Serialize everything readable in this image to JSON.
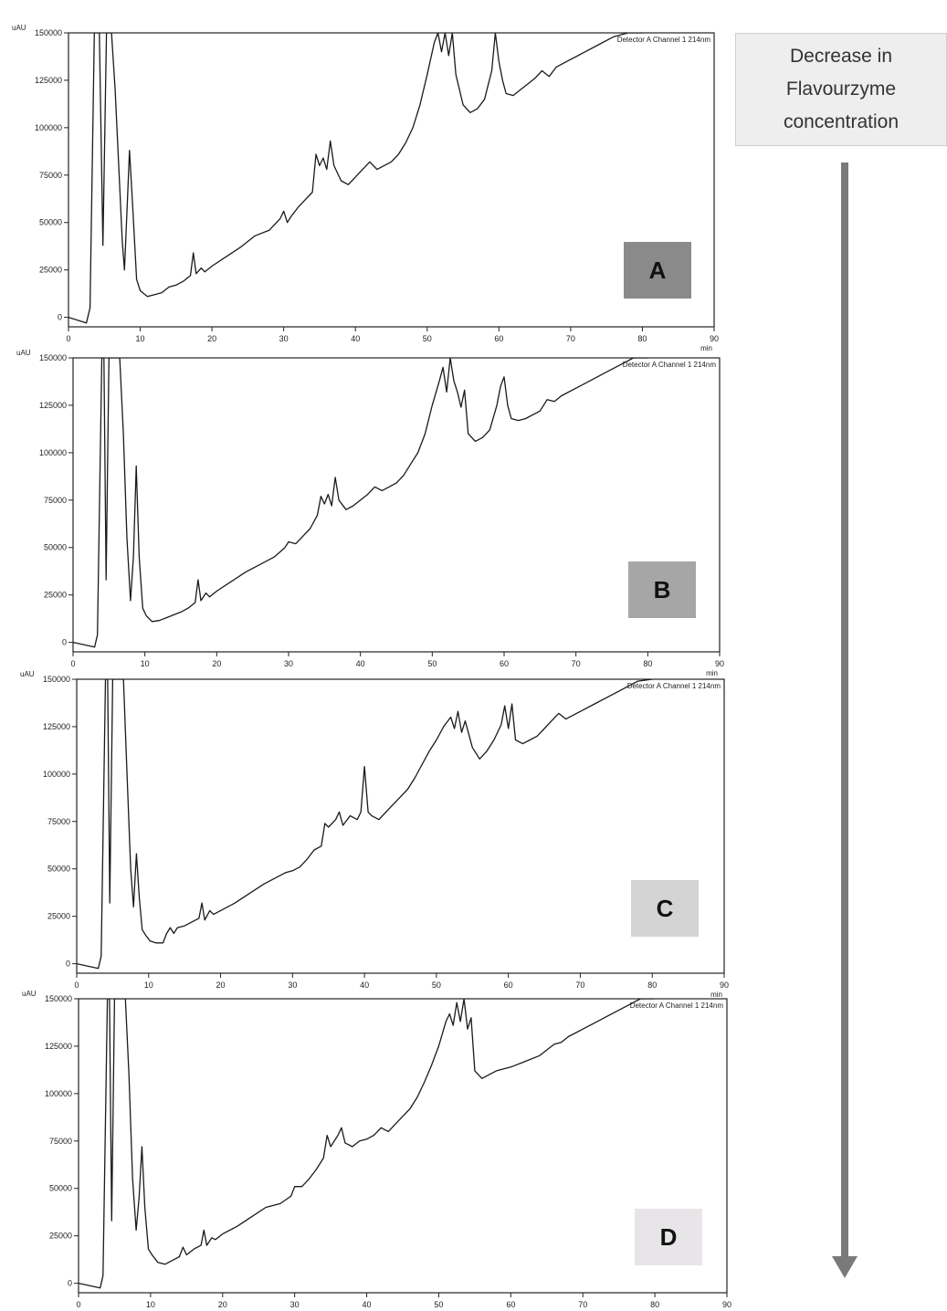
{
  "annotation": {
    "lines": [
      "Decrease in",
      "Flavourzyme",
      "concentration"
    ],
    "arrow_color": "#7a7a7a"
  },
  "chart_data": [
    {
      "type": "line",
      "panel_label": "A",
      "label_color": "#8a8a8a",
      "detector_text": "Detector A Channel 1 214nm",
      "y_unit": "uAU",
      "x_unit": "min",
      "xlim": [
        0,
        90
      ],
      "ylim": [
        -5000,
        150000
      ],
      "x_ticks": [
        0,
        10,
        20,
        30,
        40,
        50,
        60,
        70,
        80,
        90
      ],
      "y_ticks": [
        0,
        25000,
        50000,
        75000,
        100000,
        125000,
        150000
      ],
      "x": [
        0,
        2.5,
        3.0,
        3.6,
        4.0,
        4.3,
        4.8,
        5.3,
        5.7,
        6.0,
        6.5,
        7.0,
        7.5,
        7.8,
        8.2,
        8.5,
        9.0,
        9.5,
        10,
        11,
        12,
        13,
        14,
        15,
        16,
        17,
        17.4,
        17.8,
        18.5,
        19,
        20,
        22,
        24,
        26,
        28,
        29.5,
        30,
        30.5,
        31,
        32,
        33,
        34,
        34.5,
        35,
        35.5,
        36,
        36.5,
        37,
        38,
        39,
        40,
        41,
        42,
        43,
        44,
        45,
        46,
        47,
        48,
        49,
        50,
        51,
        51.5,
        52,
        52.5,
        53,
        53.5,
        54,
        55,
        56,
        57,
        58,
        59,
        59.5,
        60,
        60.5,
        61,
        62,
        63,
        64,
        65,
        66,
        67,
        68,
        70,
        72,
        74,
        76,
        78,
        80
      ],
      "y": [
        0,
        -3000,
        5000,
        150000,
        150000,
        150000,
        38000,
        150000,
        150000,
        150000,
        120000,
        80000,
        40000,
        25000,
        60000,
        88000,
        55000,
        20000,
        14000,
        11000,
        12000,
        13000,
        16000,
        17000,
        19000,
        22000,
        34000,
        23000,
        26000,
        24000,
        27000,
        32000,
        37000,
        43000,
        46000,
        52000,
        56000,
        50000,
        53000,
        58000,
        62000,
        66000,
        86000,
        80000,
        84000,
        78000,
        93000,
        80000,
        72000,
        70000,
        74000,
        78000,
        82000,
        78000,
        80000,
        82000,
        86000,
        92000,
        100000,
        112000,
        128000,
        145000,
        150000,
        140000,
        150000,
        138000,
        150000,
        128000,
        112000,
        108000,
        110000,
        115000,
        130000,
        150000,
        135000,
        125000,
        118000,
        117000,
        120000,
        123000,
        126000,
        130000,
        127000,
        132000,
        136000,
        140000,
        144000,
        148000,
        150000,
        150000
      ]
    },
    {
      "type": "line",
      "panel_label": "B",
      "label_color": "#a6a6a6",
      "detector_text": "Detector A Channel 1 214nm",
      "y_unit": "uAU",
      "x_unit": "min",
      "xlim": [
        0,
        90
      ],
      "ylim": [
        -5000,
        150000
      ],
      "x_ticks": [
        0,
        10,
        20,
        30,
        40,
        50,
        60,
        70,
        80,
        90
      ],
      "y_ticks": [
        0,
        25000,
        50000,
        75000,
        100000,
        125000,
        150000
      ],
      "x": [
        0,
        3.0,
        3.4,
        4.0,
        4.3,
        4.6,
        5.0,
        5.4,
        6.0,
        6.5,
        7.0,
        7.5,
        8.0,
        8.4,
        8.8,
        9.2,
        9.7,
        10.2,
        11,
        12,
        13,
        14,
        15,
        16,
        17,
        17.4,
        17.8,
        18.5,
        19,
        20,
        22,
        24,
        26,
        28,
        29.5,
        30,
        31,
        32,
        33,
        34,
        34.5,
        35,
        35.5,
        36,
        36.5,
        37,
        38,
        39,
        40,
        41,
        42,
        43,
        44,
        45,
        46,
        47,
        48,
        49,
        50,
        51,
        51.5,
        52,
        52.5,
        53,
        53.5,
        54,
        54.5,
        55,
        56,
        57,
        58,
        59,
        59.5,
        60,
        60.5,
        61,
        62,
        63,
        64,
        65,
        66,
        67,
        68,
        70,
        72,
        74,
        76,
        78,
        80
      ],
      "y": [
        0,
        -2500,
        4000,
        150000,
        150000,
        33000,
        150000,
        150000,
        150000,
        150000,
        110000,
        55000,
        22000,
        45000,
        93000,
        45000,
        18000,
        14000,
        11000,
        11500,
        13000,
        14500,
        16000,
        18000,
        21000,
        33000,
        22000,
        26000,
        24000,
        27000,
        32000,
        37000,
        41000,
        45000,
        50000,
        53000,
        52000,
        56000,
        60000,
        67000,
        77000,
        73000,
        78000,
        72000,
        87000,
        75000,
        70000,
        72000,
        75000,
        78000,
        82000,
        80000,
        82000,
        84000,
        88000,
        94000,
        100000,
        110000,
        125000,
        138000,
        145000,
        132000,
        150000,
        138000,
        132000,
        124000,
        133000,
        110000,
        106000,
        108000,
        112000,
        125000,
        135000,
        140000,
        125000,
        118000,
        117000,
        118000,
        120000,
        122000,
        128000,
        127000,
        130000,
        134000,
        138000,
        142000,
        146000,
        150000,
        150000
      ]
    },
    {
      "type": "line",
      "panel_label": "C",
      "label_color": "#d4d4d4",
      "detector_text": "Detector A Channel 1 214nm",
      "y_unit": "uAU",
      "x_unit": "min",
      "xlim": [
        0,
        90
      ],
      "ylim": [
        -5000,
        150000
      ],
      "x_ticks": [
        0,
        10,
        20,
        30,
        40,
        50,
        60,
        70,
        80,
        90
      ],
      "y_ticks": [
        0,
        25000,
        50000,
        75000,
        100000,
        125000,
        150000
      ],
      "x": [
        0,
        3.0,
        3.4,
        4.0,
        4.3,
        4.6,
        5.0,
        5.4,
        6.0,
        6.5,
        7.0,
        7.5,
        7.9,
        8.3,
        8.7,
        9.1,
        9.6,
        10.2,
        11,
        12,
        12.5,
        13,
        13.5,
        14,
        15,
        16,
        17,
        17.4,
        17.8,
        18.5,
        19,
        20,
        22,
        24,
        26,
        28,
        29,
        30,
        31,
        32,
        33,
        34,
        34.5,
        35,
        36,
        36.5,
        37,
        38,
        39,
        39.5,
        40,
        40.5,
        41,
        42,
        43,
        44,
        45,
        46,
        47,
        48,
        49,
        50,
        51,
        52,
        52.5,
        53,
        53.5,
        54,
        55,
        56,
        57,
        58,
        59,
        59.5,
        60,
        60.5,
        61,
        62,
        63,
        64,
        65,
        66,
        67,
        68,
        70,
        72,
        74,
        76,
        78,
        80
      ],
      "y": [
        0,
        -2500,
        4000,
        150000,
        150000,
        32000,
        150000,
        150000,
        150000,
        150000,
        100000,
        50000,
        30000,
        58000,
        35000,
        18000,
        15000,
        12000,
        11000,
        11000,
        16000,
        19000,
        16000,
        19000,
        20000,
        22000,
        24000,
        32000,
        23000,
        28000,
        26000,
        28000,
        32000,
        37000,
        42000,
        46000,
        48000,
        49000,
        51000,
        55000,
        60000,
        62000,
        74000,
        72000,
        76000,
        80000,
        73000,
        78000,
        76000,
        80000,
        104000,
        80000,
        78000,
        76000,
        80000,
        84000,
        88000,
        92000,
        98000,
        105000,
        112000,
        118000,
        125000,
        130000,
        124000,
        133000,
        122000,
        128000,
        114000,
        108000,
        112000,
        118000,
        126000,
        136000,
        124000,
        137000,
        118000,
        116000,
        118000,
        120000,
        124000,
        128000,
        132000,
        129000,
        133000,
        137000,
        141000,
        145000,
        149000,
        150000
      ]
    },
    {
      "type": "line",
      "panel_label": "D",
      "label_color": "#e8e5e8",
      "detector_text": "Detector A Channel 1 214nm",
      "y_unit": "uAU",
      "x_unit": "min",
      "xlim": [
        0,
        90
      ],
      "ylim": [
        -5000,
        150000
      ],
      "x_ticks": [
        0,
        10,
        20,
        30,
        40,
        50,
        60,
        70,
        80,
        90
      ],
      "y_ticks": [
        0,
        25000,
        50000,
        75000,
        100000,
        125000,
        150000
      ],
      "x": [
        0,
        3.0,
        3.4,
        4.0,
        4.3,
        4.6,
        5.0,
        5.4,
        6.0,
        6.5,
        7.0,
        7.5,
        8.0,
        8.4,
        8.8,
        9.2,
        9.7,
        10.2,
        11,
        12,
        13,
        14,
        14.5,
        15,
        16,
        17,
        17.4,
        17.8,
        18.5,
        19,
        20,
        22,
        24,
        26,
        28,
        29.5,
        30,
        31,
        32,
        33,
        34,
        34.5,
        35,
        36,
        36.5,
        37,
        38,
        39,
        40,
        41,
        42,
        43,
        44,
        45,
        46,
        47,
        48,
        49,
        50,
        51,
        51.5,
        52,
        52.5,
        53,
        53.5,
        54,
        54.5,
        55,
        56,
        57,
        58,
        60,
        62,
        64,
        66,
        67,
        68,
        70,
        72,
        74,
        76,
        78,
        80
      ],
      "y": [
        0,
        -2500,
        4000,
        150000,
        150000,
        33000,
        150000,
        150000,
        150000,
        150000,
        110000,
        55000,
        28000,
        45000,
        72000,
        40000,
        18000,
        15000,
        11000,
        10000,
        12000,
        14000,
        19000,
        15000,
        18000,
        20000,
        28000,
        20000,
        24000,
        23000,
        26000,
        30000,
        35000,
        40000,
        42000,
        46000,
        51000,
        51000,
        55000,
        60000,
        66000,
        78000,
        72000,
        78000,
        82000,
        74000,
        72000,
        75000,
        76000,
        78000,
        82000,
        80000,
        84000,
        88000,
        92000,
        98000,
        106000,
        115000,
        125000,
        138000,
        142000,
        136000,
        148000,
        138000,
        150000,
        134000,
        140000,
        112000,
        108000,
        110000,
        112000,
        114000,
        117000,
        120000,
        126000,
        127000,
        130000,
        134000,
        138000,
        142000,
        146000,
        150000,
        150000
      ]
    }
  ]
}
